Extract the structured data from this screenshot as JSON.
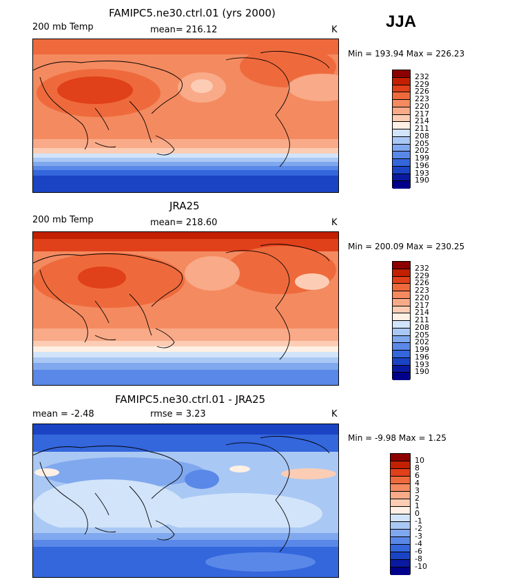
{
  "season": "JJA",
  "panels": [
    {
      "title": "FAMIPC5.ne30.ctrl.01 (yrs 2000)",
      "left_label": "200 mb Temp",
      "center_label": "mean= 216.12",
      "units": "K",
      "minmax": "Min = 193.94 Max = 226.23",
      "palette": "warm"
    },
    {
      "title": "JRA25",
      "left_label": "200 mb Temp",
      "center_label": "mean= 218.60",
      "units": "K",
      "minmax": "Min = 200.09 Max = 230.25",
      "palette": "warm"
    },
    {
      "title": "FAMIPC5.ne30.ctrl.01 - JRA25",
      "left_label": "mean =   -2.48",
      "center_label": "rmse =    3.23",
      "units": "K",
      "minmax": "Min =  -9.98 Max =   1.25",
      "palette": "cool"
    }
  ],
  "colorbars": {
    "abs_levels": [
      "232",
      "229",
      "226",
      "223",
      "220",
      "217",
      "214",
      "211",
      "208",
      "205",
      "202",
      "199",
      "196",
      "193",
      "190"
    ],
    "diff_levels": [
      "10",
      "8",
      "6",
      "4",
      "3",
      "2",
      "1",
      "0",
      "-1",
      "-2",
      "-3",
      "-4",
      "-6",
      "-8",
      "-10"
    ],
    "colors": [
      "#8c0000",
      "#c22000",
      "#e0401a",
      "#ee6a3c",
      "#f48a60",
      "#f9aa88",
      "#fccdb4",
      "#fef0e4",
      "#d2e4fa",
      "#aac8f4",
      "#80a8ee",
      "#5a88e8",
      "#3466dc",
      "#1a44c4",
      "#0a1aa0",
      "#00008a"
    ]
  },
  "chart_data": [
    {
      "type": "heatmap",
      "title": "FAMIPC5.ne30.ctrl.01 (yrs 2000)",
      "variable": "200 mb Temp",
      "units": "K",
      "season": "JJA",
      "mean": 216.12,
      "min": 193.94,
      "max": 226.23,
      "contour_levels": [
        190,
        193,
        196,
        199,
        202,
        205,
        208,
        211,
        214,
        217,
        220,
        223,
        226,
        229,
        232
      ]
    },
    {
      "type": "heatmap",
      "title": "JRA25",
      "variable": "200 mb Temp",
      "units": "K",
      "season": "JJA",
      "mean": 218.6,
      "min": 200.09,
      "max": 230.25,
      "contour_levels": [
        190,
        193,
        196,
        199,
        202,
        205,
        208,
        211,
        214,
        217,
        220,
        223,
        226,
        229,
        232
      ]
    },
    {
      "type": "heatmap",
      "title": "FAMIPC5.ne30.ctrl.01 - JRA25",
      "units": "K",
      "season": "JJA",
      "mean": -2.48,
      "rmse": 3.23,
      "min": -9.98,
      "max": 1.25,
      "contour_levels": [
        -10,
        -8,
        -6,
        -4,
        -3,
        -2,
        -1,
        0,
        1,
        2,
        3,
        4,
        6,
        8,
        10
      ]
    }
  ]
}
